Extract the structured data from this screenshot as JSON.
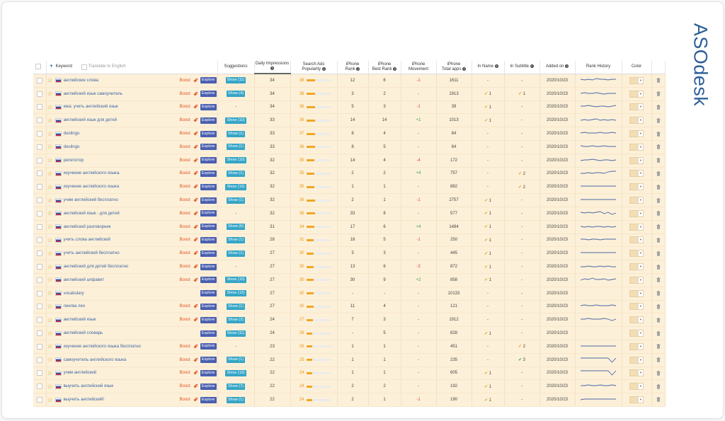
{
  "brand": {
    "logo_text": "ASOdesk"
  },
  "header": {
    "keyword": "Keyword",
    "translate_label": "Translate to English",
    "suggestions": "Suggestions",
    "daily_impressions": [
      "Daily Impressions"
    ],
    "search_ads_popularity": [
      "Search Ads",
      "Popularity"
    ],
    "iphone_rank": [
      "iPhone",
      "Rank"
    ],
    "iphone_best_rank": [
      "iPhone",
      "Best Rank"
    ],
    "iphone_movement": [
      "iPhone",
      "Movement"
    ],
    "iphone_total_apps": [
      "iPhone",
      "Total apps"
    ],
    "in_name": "In Name",
    "in_subtitle": "In Subtitle",
    "added_on": "Added on",
    "rank_history": "Rank History",
    "color": "Color"
  },
  "labels": {
    "boost": "Boost",
    "explore": "Explore",
    "info": "?"
  },
  "colors": {
    "row_bg": "#fdf0d8",
    "popularity": "#f0a724",
    "explore": "#4a5fb0",
    "show": "#35a5c7",
    "boost": "#e2541f"
  },
  "rows": [
    {
      "keyword": "английские слова",
      "boost": true,
      "show": "Show (11)",
      "impressions": "34",
      "popularity": 38,
      "rank": "12",
      "best_rank": "6",
      "movement": "-1",
      "total_apps": "1611",
      "in_name": "-",
      "in_subtitle": "-",
      "added": "2020/10/23",
      "history": [
        3,
        4,
        3,
        4,
        2,
        3,
        3,
        4,
        3,
        3
      ]
    },
    {
      "keyword": "английский язык самоучитель",
      "boost": true,
      "show": "Show (4)",
      "impressions": "34",
      "popularity": 38,
      "rank": "3",
      "best_rank": "2",
      "movement": "-",
      "total_apps": "1913",
      "in_name": "1",
      "in_subtitle": "1",
      "added": "2020/10/23",
      "history": [
        4,
        3,
        4,
        4,
        3,
        4,
        5,
        4,
        4,
        4
      ]
    },
    {
      "keyword": "ewa: учить английский язык",
      "boost": true,
      "show": "",
      "impressions": "34",
      "popularity": 38,
      "rank": "5",
      "best_rank": "3",
      "movement": "-1",
      "total_apps": "39",
      "in_name": "1",
      "in_subtitle": "-",
      "added": "2020/10/23",
      "history": [
        4,
        4,
        3,
        4,
        5,
        4,
        4,
        5,
        4,
        3
      ]
    },
    {
      "keyword": "английский язык для детей",
      "boost": true,
      "show": "Show (10)",
      "impressions": "33",
      "popularity": 36,
      "rank": "14",
      "best_rank": "14",
      "movement": "+1",
      "total_apps": "1013",
      "in_name": "1",
      "in_subtitle": "-",
      "added": "2020/10/23",
      "history": [
        5,
        4,
        5,
        4,
        3,
        5,
        4,
        5,
        4,
        5
      ]
    },
    {
      "keyword": "duolingo",
      "boost": true,
      "show": "Show (1)",
      "impressions": "33",
      "popularity": 37,
      "rank": "8",
      "best_rank": "4",
      "movement": "-",
      "total_apps": "84",
      "in_name": "-",
      "in_subtitle": "-",
      "added": "2020/10/23",
      "history": [
        4,
        3,
        4,
        4,
        4,
        3,
        4,
        4,
        3,
        4
      ]
    },
    {
      "keyword": "doulingo",
      "boost": true,
      "show": "Show (1)",
      "impressions": "33",
      "popularity": 36,
      "rank": "8",
      "best_rank": "5",
      "movement": "-",
      "total_apps": "84",
      "in_name": "-",
      "in_subtitle": "-",
      "added": "2020/10/23",
      "history": [
        3,
        4,
        4,
        3,
        4,
        4,
        3,
        4,
        4,
        4
      ]
    },
    {
      "keyword": "репетитор",
      "boost": true,
      "show": "Show (10)",
      "impressions": "32",
      "popularity": 35,
      "rank": "14",
      "best_rank": "4",
      "movement": "-4",
      "total_apps": "172",
      "in_name": "-",
      "in_subtitle": "-",
      "added": "2020/10/23",
      "history": [
        5,
        4,
        4,
        3,
        4,
        5,
        4,
        4,
        5,
        4
      ]
    },
    {
      "keyword": "изучение английского языка.",
      "boost": true,
      "show": "Show (1)",
      "impressions": "32",
      "popularity": 35,
      "rank": "2",
      "best_rank": "2",
      "movement": "+4",
      "total_apps": "757",
      "in_name": "-",
      "in_subtitle": "2",
      "added": "2020/10/23",
      "history": [
        5,
        5,
        4,
        5,
        4,
        4,
        5,
        3,
        2,
        2
      ]
    },
    {
      "keyword": "изучение английского языка",
      "boost": true,
      "show": "Show (10)",
      "impressions": "32",
      "popularity": 35,
      "rank": "1",
      "best_rank": "1",
      "movement": "-",
      "total_apps": "882",
      "in_name": "-",
      "in_subtitle": "2",
      "added": "2020/10/23",
      "history": [
        4,
        4,
        4,
        4,
        4,
        4,
        4,
        4,
        4,
        4
      ]
    },
    {
      "keyword": "учим английский бесплатно",
      "boost": true,
      "show": "Show (1)",
      "impressions": "32",
      "popularity": 36,
      "rank": "2",
      "best_rank": "1",
      "movement": "-1",
      "total_apps": "2757",
      "in_name": "1",
      "in_subtitle": "-",
      "added": "2020/10/23",
      "history": [
        4,
        4,
        4,
        4,
        4,
        4,
        4,
        4,
        4,
        4
      ]
    },
    {
      "keyword": "английский язык - для детей",
      "boost": true,
      "show": "",
      "impressions": "32",
      "popularity": 36,
      "rank": "33",
      "best_rank": "8",
      "movement": "-",
      "total_apps": "577",
      "in_name": "1",
      "in_subtitle": "-",
      "added": "2020/10/23",
      "history": [
        3,
        4,
        3,
        4,
        3,
        2,
        5,
        3,
        6,
        4
      ]
    },
    {
      "keyword": "английский разговорник",
      "boost": true,
      "show": "Show (6)",
      "impressions": "31",
      "popularity": 34,
      "rank": "17",
      "best_rank": "6",
      "movement": "+4",
      "total_apps": "1484",
      "in_name": "1",
      "in_subtitle": "-",
      "added": "2020/10/23",
      "history": [
        4,
        5,
        4,
        5,
        4,
        4,
        5,
        4,
        5,
        4
      ]
    },
    {
      "keyword": "учить слова английский",
      "boost": true,
      "show": "Show (1)",
      "impressions": "28",
      "popularity": 31,
      "rank": "18",
      "best_rank": "5",
      "movement": "-1",
      "total_apps": "250",
      "in_name": "1",
      "in_subtitle": "-",
      "added": "2020/10/23",
      "history": [
        4,
        4,
        5,
        4,
        4,
        5,
        4,
        4,
        4,
        4
      ]
    },
    {
      "keyword": "учить английский бесплатно",
      "boost": true,
      "show": "Show (1)",
      "impressions": "27",
      "popularity": 30,
      "rank": "3",
      "best_rank": "3",
      "movement": "-",
      "total_apps": "445",
      "in_name": "1",
      "in_subtitle": "-",
      "added": "2020/10/23",
      "history": [
        4,
        4,
        4,
        4,
        4,
        4,
        4,
        4,
        4,
        4
      ]
    },
    {
      "keyword": "английский для детей бесплатно",
      "boost": true,
      "show": "",
      "impressions": "27",
      "popularity": 30,
      "rank": "13",
      "best_rank": "6",
      "movement": "-3",
      "total_apps": "872",
      "in_name": "1",
      "in_subtitle": "-",
      "added": "2020/10/23",
      "history": [
        5,
        5,
        4,
        5,
        5,
        4,
        5,
        4,
        5,
        5
      ]
    },
    {
      "keyword": "английский алфавит",
      "boost": true,
      "show": "Show (10)",
      "impressions": "27",
      "popularity": 30,
      "rank": "30",
      "best_rank": "9",
      "movement": "+2",
      "total_apps": "858",
      "in_name": "1",
      "in_subtitle": "-",
      "added": "2020/10/23",
      "history": [
        5,
        3,
        4,
        2,
        4,
        4,
        3,
        5,
        4,
        3
      ]
    },
    {
      "keyword": "vocabulary",
      "boost": false,
      "show": "Show (12)",
      "impressions": "27",
      "popularity": 30,
      "rank": "-",
      "best_rank": "-",
      "movement": "-",
      "total_apps": "10133",
      "in_name": "-",
      "in_subtitle": "-",
      "added": "2020/10/23",
      "history": []
    },
    {
      "keyword": "лингва лео",
      "boost": true,
      "show": "Show (1)",
      "impressions": "27",
      "popularity": 30,
      "rank": "11",
      "best_rank": "4",
      "movement": "-",
      "total_apps": "121",
      "in_name": "-",
      "in_subtitle": "-",
      "added": "2020/10/23",
      "history": [
        4,
        3,
        4,
        4,
        3,
        4,
        4,
        4,
        3,
        4
      ]
    },
    {
      "keyword": "английский язык",
      "boost": true,
      "show": "Show (2)",
      "impressions": "24",
      "popularity": 27,
      "rank": "7",
      "best_rank": "3",
      "movement": "-",
      "total_apps": "1912",
      "in_name": "-",
      "in_subtitle": "-",
      "added": "2020/10/23",
      "history": [
        4,
        4,
        3,
        4,
        4,
        4,
        3,
        4,
        6,
        4
      ]
    },
    {
      "keyword": "английский словарь",
      "boost": false,
      "show": "Show (11)",
      "impressions": "24",
      "popularity": 26,
      "rank": "-",
      "best_rank": "5",
      "movement": "-",
      "total_apps": "828",
      "in_name": "1",
      "in_subtitle": "-",
      "added": "2020/10/23",
      "history": []
    },
    {
      "keyword": "изучение английского языка бесплатно",
      "boost": true,
      "show": "",
      "impressions": "23",
      "popularity": 26,
      "rank": "1",
      "best_rank": "1",
      "movement": "-",
      "total_apps": "451",
      "in_name": "-",
      "in_subtitle": "2",
      "added": "2020/10/23",
      "history": [
        4,
        4,
        4,
        4,
        4,
        4,
        4,
        4,
        4,
        4
      ]
    },
    {
      "keyword": "самоучитель английского языка",
      "boost": true,
      "show": "Show (1)",
      "impressions": "22",
      "popularity": 25,
      "rank": "1",
      "best_rank": "1",
      "movement": "-",
      "total_apps": "235",
      "in_name": "-",
      "in_subtitle": "3",
      "added": "2020/10/23",
      "history": [
        2,
        2,
        2,
        2,
        2,
        2,
        2,
        2,
        8,
        2
      ]
    },
    {
      "keyword": "учим английский",
      "boost": true,
      "show": "Show (10)",
      "impressions": "22",
      "popularity": 24,
      "rank": "1",
      "best_rank": "1",
      "movement": "-",
      "total_apps": "605",
      "in_name": "1",
      "in_subtitle": "-",
      "added": "2020/10/23",
      "history": [
        2,
        2,
        2,
        2,
        2,
        2,
        2,
        2,
        8,
        2
      ]
    },
    {
      "keyword": "выучить английский язык",
      "boost": true,
      "show": "Show (7)",
      "impressions": "22",
      "popularity": 24,
      "rank": "2",
      "best_rank": "2",
      "movement": "-",
      "total_apps": "192",
      "in_name": "1",
      "in_subtitle": "-",
      "added": "2020/10/23",
      "history": [
        4,
        4,
        3,
        4,
        4,
        3,
        4,
        4,
        3,
        4
      ]
    },
    {
      "keyword": "выучить английский!",
      "boost": true,
      "show": "Show (1)",
      "impressions": "22",
      "popularity": 24,
      "rank": "2",
      "best_rank": "1",
      "movement": "-1",
      "total_apps": "190",
      "in_name": "1",
      "in_subtitle": "-",
      "added": "2020/10/23",
      "history": [
        5,
        4,
        4,
        4,
        4,
        4,
        4,
        4,
        4,
        4
      ]
    }
  ]
}
